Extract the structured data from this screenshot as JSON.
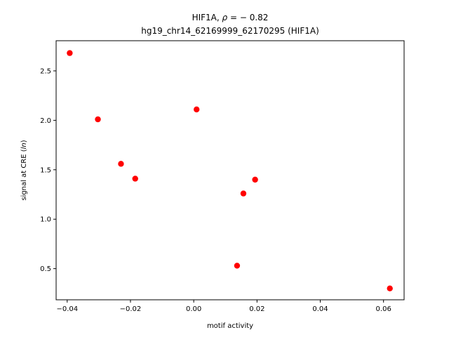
{
  "chart_data": {
    "type": "scatter",
    "title_line1_prefix": "HIF1A, ",
    "title_line1_rho": "ρ",
    "title_line1_value": " = − 0.82",
    "title_line2": "hg19_chr14_62169999_62170295 (HIF1A)",
    "xlabel": "motif activity",
    "ylabel_prefix": "signal at CRE (",
    "ylabel_italic": "ln",
    "ylabel_suffix": ")",
    "xlim": [
      -0.0435,
      0.0665
    ],
    "ylim": [
      0.185,
      2.805
    ],
    "x_ticks": [
      -0.04,
      -0.02,
      0.0,
      0.02,
      0.04,
      0.06
    ],
    "x_tick_labels": [
      "−0.04",
      "−0.02",
      "0.00",
      "0.02",
      "0.04",
      "0.06"
    ],
    "y_ticks": [
      0.5,
      1.0,
      1.5,
      2.0,
      2.5
    ],
    "y_tick_labels": [
      "0.5",
      "1.0",
      "1.5",
      "2.0",
      "2.5"
    ],
    "grid": false,
    "marker_color": "#ff0000",
    "x": [
      -0.0392,
      -0.0303,
      -0.023,
      -0.0185,
      0.0009,
      0.0137,
      0.0157,
      0.0194,
      0.062
    ],
    "y": [
      2.68,
      2.01,
      1.56,
      1.41,
      2.11,
      0.53,
      1.26,
      1.4,
      0.3
    ]
  }
}
